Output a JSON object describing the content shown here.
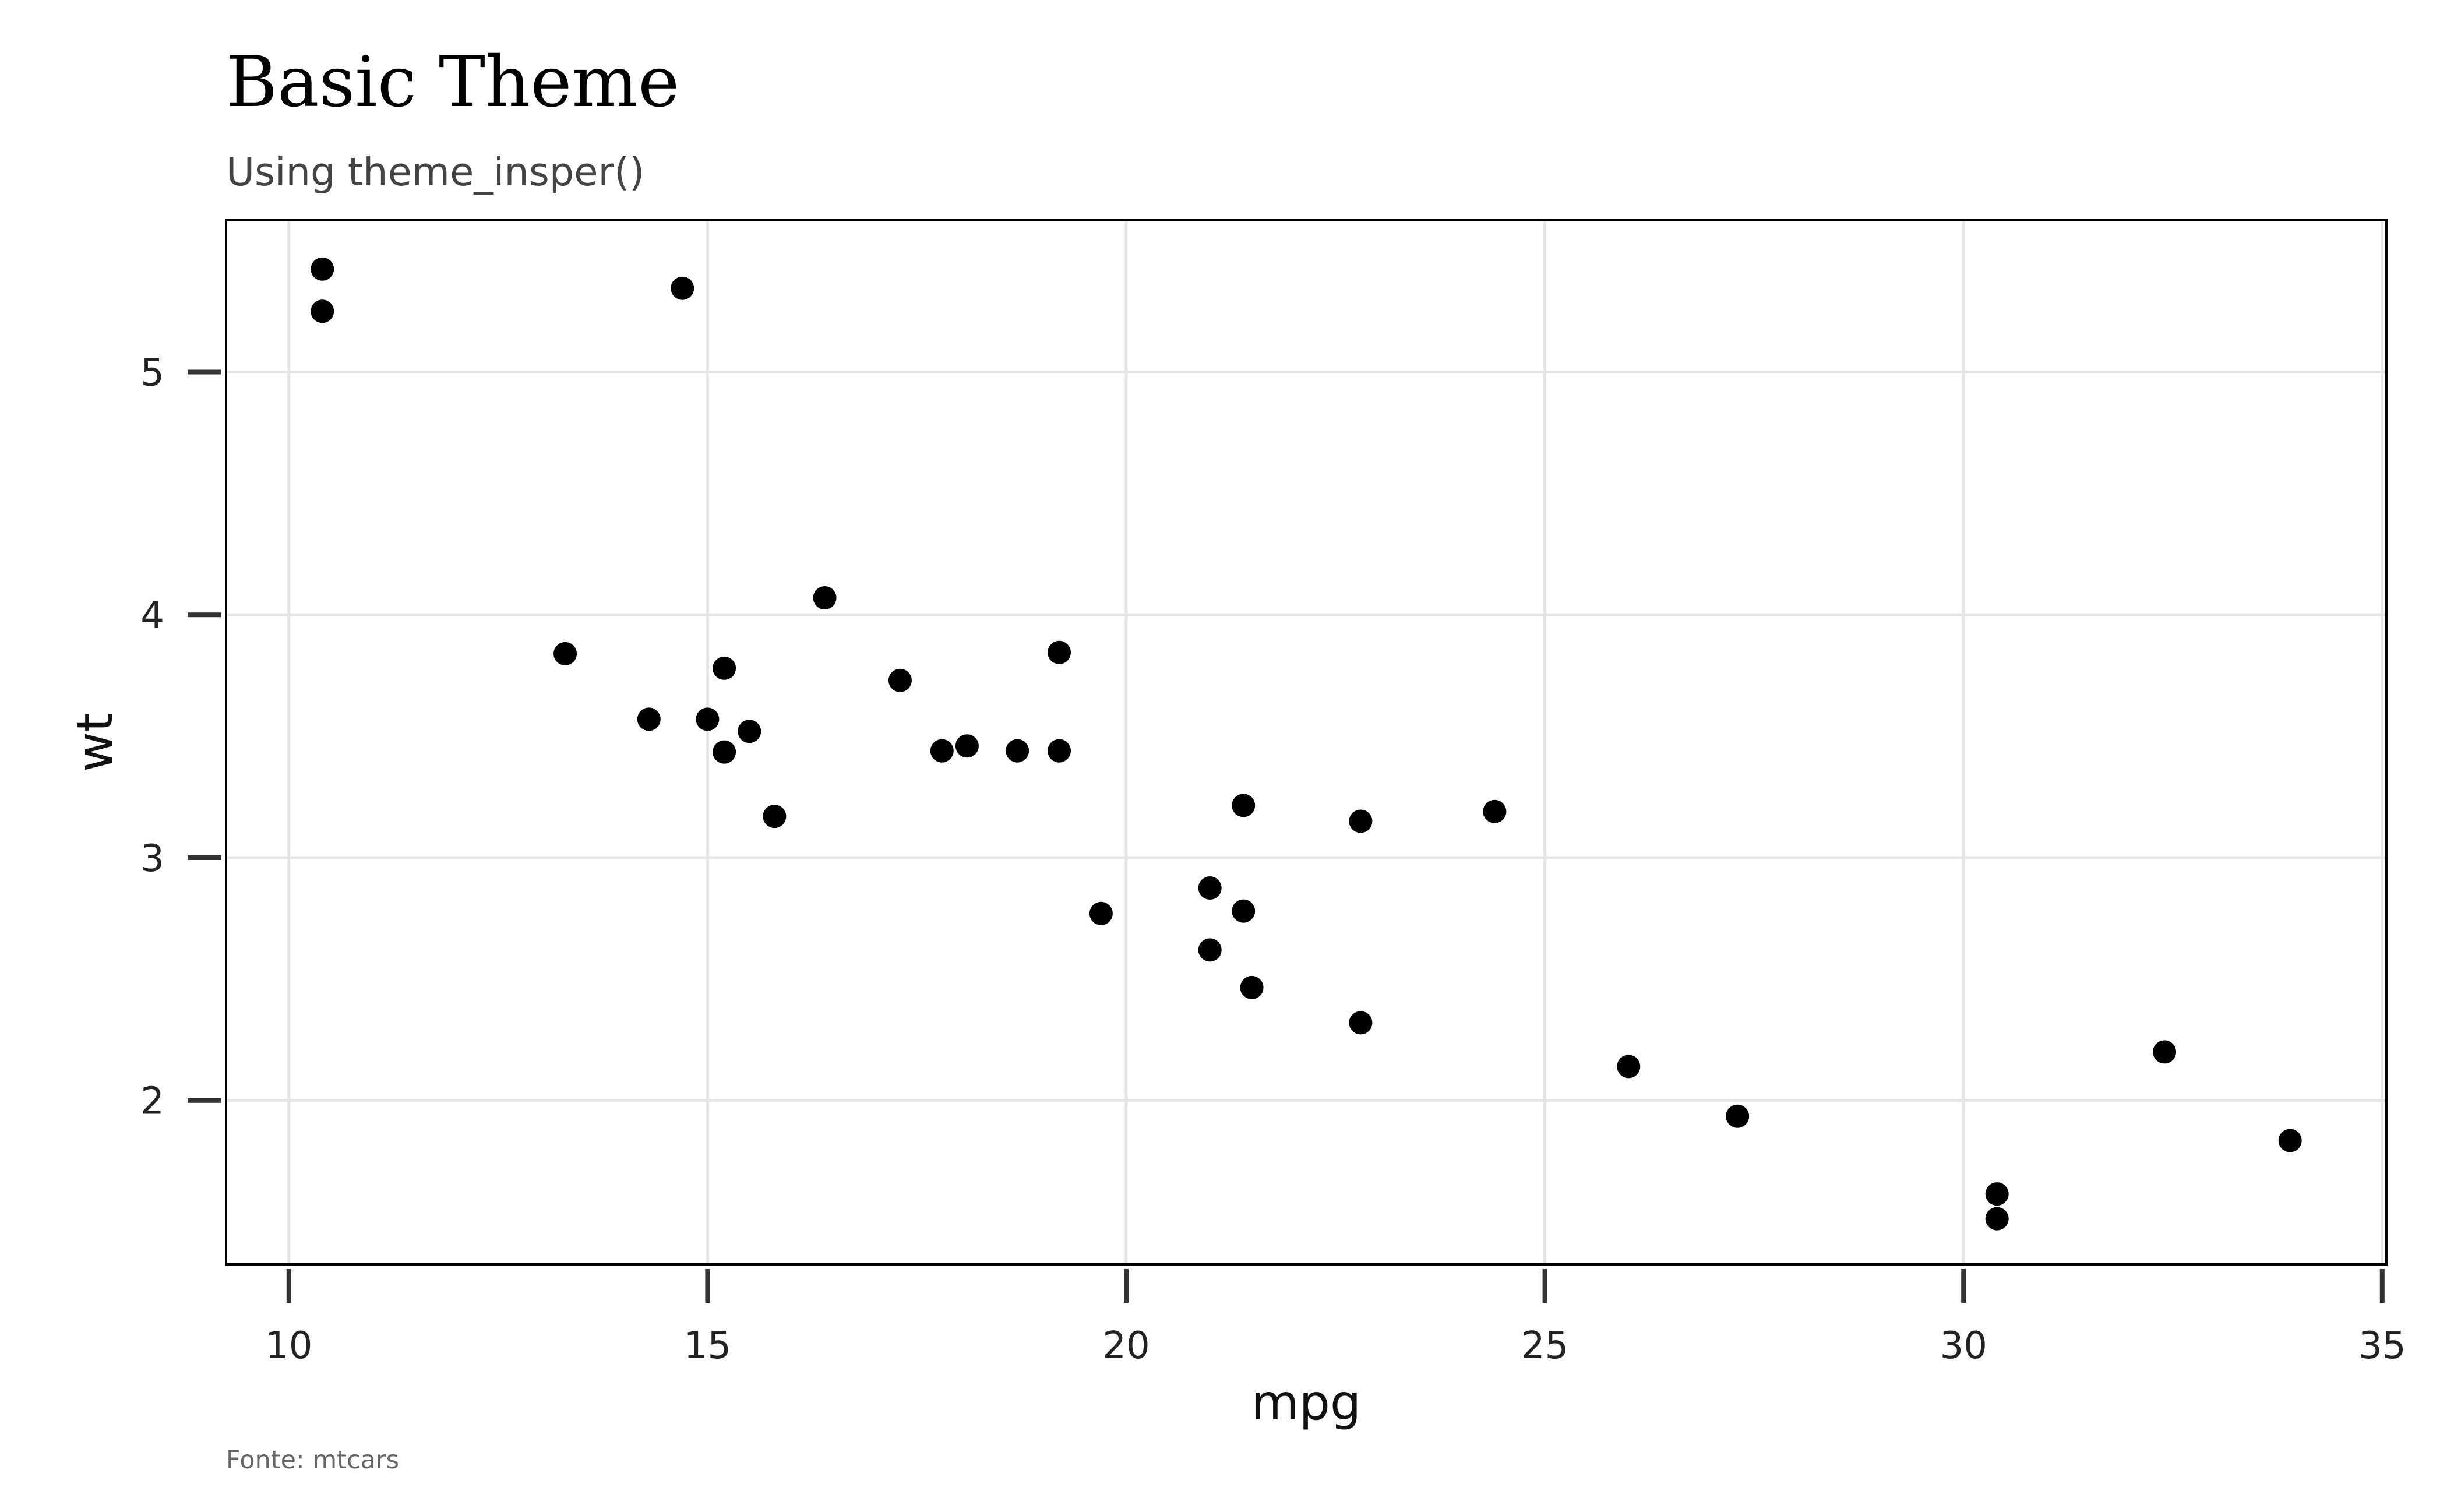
{
  "chart_data": {
    "type": "scatter",
    "title": "Basic Theme",
    "subtitle": "Using theme_insper()",
    "caption": "Fonte: mtcars",
    "xlabel": "mpg",
    "ylabel": "wt",
    "xlim": [
      9.25,
      35.05
    ],
    "ylim": [
      1.325,
      5.625
    ],
    "x_ticks": [
      10,
      15,
      20,
      25,
      30,
      35
    ],
    "y_ticks": [
      2,
      3,
      4,
      5
    ],
    "grid": true,
    "legend": "none",
    "point_color": "#000000",
    "points": [
      {
        "x": 21.0,
        "y": 2.62
      },
      {
        "x": 21.0,
        "y": 2.875
      },
      {
        "x": 22.8,
        "y": 2.32
      },
      {
        "x": 21.4,
        "y": 3.215
      },
      {
        "x": 18.7,
        "y": 3.44
      },
      {
        "x": 18.1,
        "y": 3.46
      },
      {
        "x": 14.3,
        "y": 3.57
      },
      {
        "x": 24.4,
        "y": 3.19
      },
      {
        "x": 22.8,
        "y": 3.15
      },
      {
        "x": 19.2,
        "y": 3.44
      },
      {
        "x": 17.8,
        "y": 3.44
      },
      {
        "x": 16.4,
        "y": 4.07
      },
      {
        "x": 17.3,
        "y": 3.73
      },
      {
        "x": 15.2,
        "y": 3.78
      },
      {
        "x": 10.4,
        "y": 5.25
      },
      {
        "x": 10.4,
        "y": 5.424
      },
      {
        "x": 14.7,
        "y": 5.345
      },
      {
        "x": 32.4,
        "y": 2.2
      },
      {
        "x": 30.4,
        "y": 1.615
      },
      {
        "x": 33.9,
        "y": 1.835
      },
      {
        "x": 21.5,
        "y": 2.465
      },
      {
        "x": 15.5,
        "y": 3.52
      },
      {
        "x": 15.2,
        "y": 3.435
      },
      {
        "x": 13.3,
        "y": 3.84
      },
      {
        "x": 19.2,
        "y": 3.845
      },
      {
        "x": 27.3,
        "y": 1.935
      },
      {
        "x": 26.0,
        "y": 2.14
      },
      {
        "x": 30.4,
        "y": 1.513
      },
      {
        "x": 15.8,
        "y": 3.17
      },
      {
        "x": 19.7,
        "y": 2.77
      },
      {
        "x": 15.0,
        "y": 3.57
      },
      {
        "x": 21.4,
        "y": 2.78
      }
    ]
  }
}
